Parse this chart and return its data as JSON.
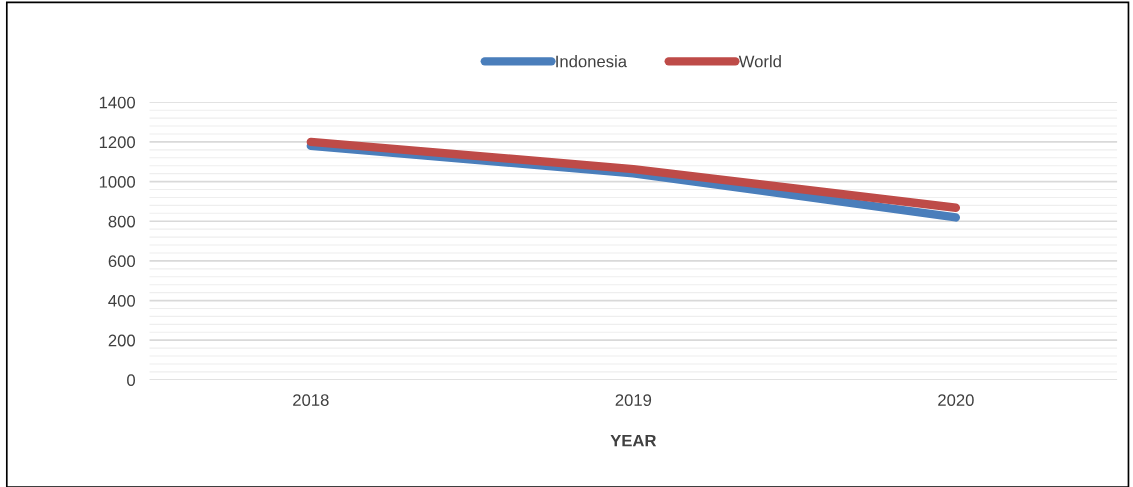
{
  "chart_data": {
    "type": "line",
    "xlabel": "YEAR",
    "categories": [
      "2018",
      "2019",
      "2020"
    ],
    "series": [
      {
        "name": "Indonesia",
        "color": "#4a7ebb",
        "values": [
          1180,
          1042,
          819
        ]
      },
      {
        "name": "World",
        "color": "#be4b48",
        "values": [
          1200,
          1063,
          868
        ]
      }
    ],
    "ylim": [
      0,
      1400
    ],
    "yticks": [
      0,
      {
        "value": 40,
        "label": null
      },
      {
        "value": 80,
        "label": null
      },
      {
        "value": 120,
        "label": null
      },
      {
        "value": 160,
        "label": null
      },
      200,
      {
        "value": 240,
        "label": null
      },
      {
        "value": 280,
        "label": null
      },
      {
        "value": 320,
        "label": null
      },
      {
        "value": 360,
        "label": null
      },
      400,
      {
        "value": 440,
        "label": null
      },
      {
        "value": 480,
        "label": null
      },
      {
        "value": 520,
        "label": null
      },
      {
        "value": 560,
        "label": null
      },
      600,
      {
        "value": 640,
        "label": null
      },
      {
        "value": 680,
        "label": null
      },
      {
        "value": 720,
        "label": null
      },
      {
        "value": 760,
        "label": null
      },
      800,
      {
        "value": 840,
        "label": null
      },
      {
        "value": 880,
        "label": null
      },
      {
        "value": 920,
        "label": null
      },
      {
        "value": 960,
        "label": null
      },
      1000,
      {
        "value": 1040,
        "label": null
      },
      {
        "value": 1080,
        "label": null
      },
      {
        "value": 1120,
        "label": null
      },
      {
        "value": 1160,
        "label": null
      },
      1200,
      {
        "value": 1240,
        "label": null
      },
      {
        "value": 1280,
        "label": null
      },
      {
        "value": 1320,
        "label": null
      },
      {
        "value": 1360,
        "label": null
      },
      1400
    ],
    "grid": "y",
    "legend": "top",
    "marker": "none",
    "line_style": "solid"
  }
}
